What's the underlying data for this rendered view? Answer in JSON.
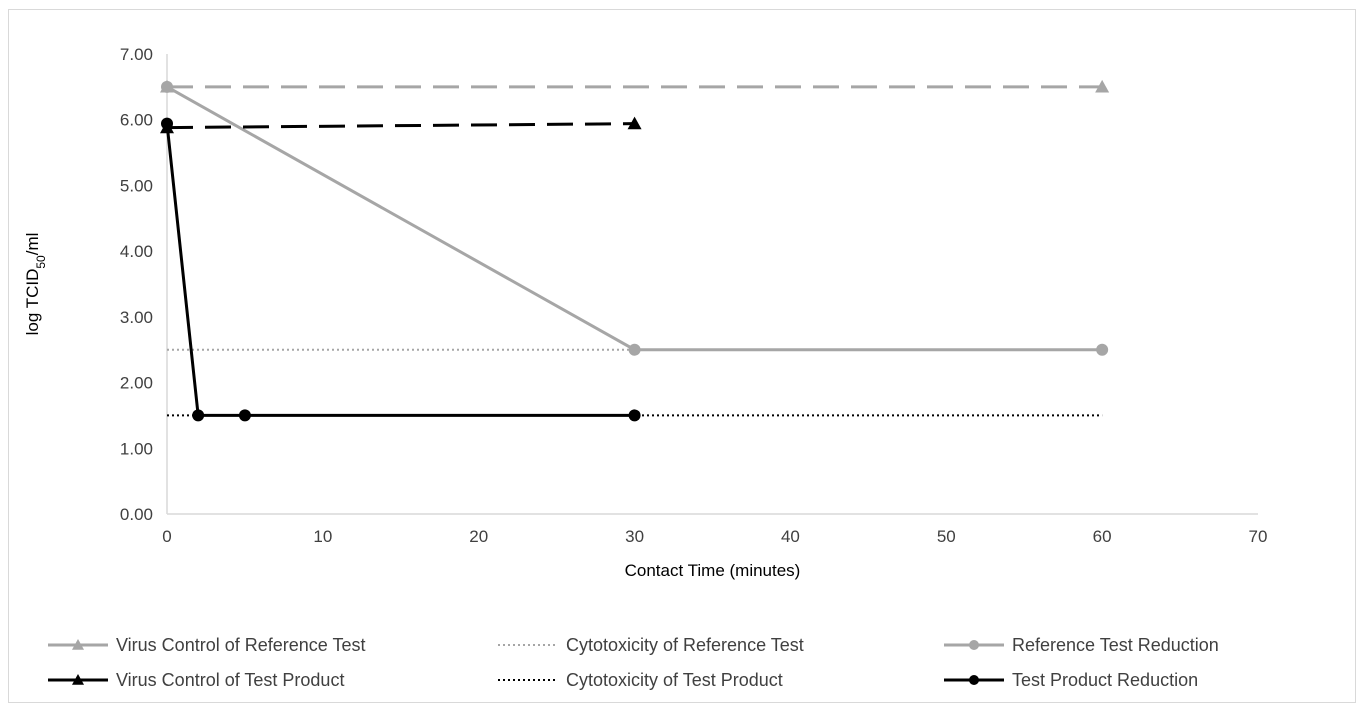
{
  "chart_data": {
    "type": "line",
    "xlabel": "Contact Time (minutes)",
    "ylabel_prefix": "log TCID",
    "ylabel_sub": "50",
    "ylabel_suffix": "/ml",
    "xlim": [
      0,
      70
    ],
    "ylim": [
      0,
      7
    ],
    "x_ticks": [
      "0",
      "10",
      "20",
      "30",
      "40",
      "50",
      "60",
      "70"
    ],
    "y_ticks": [
      "0.00",
      "1.00",
      "2.00",
      "3.00",
      "4.00",
      "5.00",
      "6.00",
      "7.00"
    ],
    "grid": false,
    "legend_position": "bottom",
    "series": [
      {
        "name": "Virus Control of Reference Test",
        "color": "#a6a6a6",
        "dash": "dashed",
        "marker": "triangle",
        "x": [
          0,
          60
        ],
        "y": [
          6.5,
          6.5
        ]
      },
      {
        "name": "Cytotoxicity of Reference Test",
        "color": "#a6a6a6",
        "dash": "dotted",
        "marker": "none",
        "x": [
          0,
          30
        ],
        "y": [
          2.5,
          2.5
        ]
      },
      {
        "name": "Reference Test Reduction",
        "color": "#a6a6a6",
        "dash": "solid",
        "marker": "circle",
        "x": [
          0,
          30,
          60
        ],
        "y": [
          6.5,
          2.5,
          2.5
        ]
      },
      {
        "name": "Virus Control of Test Product",
        "color": "#000000",
        "dash": "dashed",
        "marker": "triangle",
        "x": [
          0,
          30
        ],
        "y": [
          5.88,
          5.94
        ]
      },
      {
        "name": "Cytotoxicity of Test Product",
        "color": "#000000",
        "dash": "dotted",
        "marker": "none",
        "x": [
          0,
          60
        ],
        "y": [
          1.5,
          1.5
        ]
      },
      {
        "name": "Test Product Reduction",
        "color": "#000000",
        "dash": "solid",
        "marker": "circle",
        "x": [
          0,
          2,
          5,
          30
        ],
        "y": [
          5.94,
          1.5,
          1.5,
          1.5
        ]
      }
    ]
  }
}
